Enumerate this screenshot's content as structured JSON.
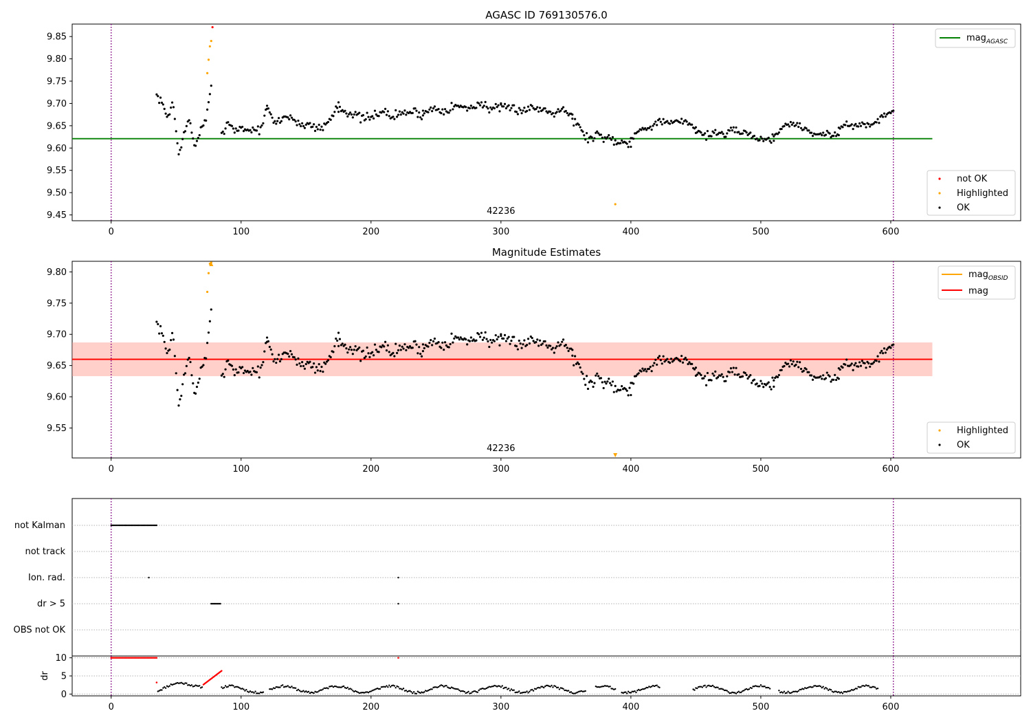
{
  "chart_data": [
    {
      "type": "scatter",
      "title": "AGASC ID 769130576.0",
      "xlim": [
        -30,
        700
      ],
      "ylim": [
        9.437,
        9.878
      ],
      "xticks": [
        0,
        100,
        200,
        300,
        400,
        500,
        600
      ],
      "yticks": [
        9.45,
        9.5,
        9.55,
        9.6,
        9.65,
        9.7,
        9.75,
        9.8,
        9.85
      ],
      "obsid_boundaries": [
        0,
        602
      ],
      "obsid_label": "42236",
      "obsid_label_x": 300,
      "reference_line": {
        "name": "mag",
        "subscript": "AGASC",
        "value": 9.621,
        "x_range": [
          -30,
          632
        ],
        "color": "#008000"
      },
      "legend_lines": [
        {
          "name": "mag",
          "subscript": "AGASC",
          "color": "#008000"
        }
      ],
      "legend_points": [
        {
          "label": "not OK",
          "color": "#ff0000"
        },
        {
          "label": "Highlighted",
          "color": "#ffa500"
        },
        {
          "label": "OK",
          "color": "#000000"
        }
      ],
      "highlighted_points": {
        "x": [
          74,
          75,
          76,
          77,
          388
        ],
        "y": [
          9.768,
          9.798,
          9.828,
          9.84,
          9.474
        ]
      },
      "not_ok_points": {
        "x": [
          78
        ],
        "y": [
          9.871
        ]
      },
      "segments": [
        {
          "x0": 35,
          "x1": 77,
          "anchors": [
            9.718,
            9.7,
            9.668,
            9.705,
            9.585,
            9.63,
            9.665,
            9.6,
            9.64,
            9.66,
            9.735
          ],
          "amp": 0.008
        },
        {
          "x0": 85,
          "x1": 120,
          "anchors": [
            9.63,
            9.66,
            9.64,
            9.645,
            9.64,
            9.642,
            9.64,
            9.69
          ],
          "amp": 0.008
        },
        {
          "x0": 120,
          "x1": 175,
          "anchors": [
            9.69,
            9.655,
            9.668,
            9.672,
            9.65,
            9.655,
            9.648,
            9.645,
            9.665,
            9.7
          ],
          "amp": 0.01
        },
        {
          "x0": 175,
          "x1": 240,
          "anchors": [
            9.69,
            9.68,
            9.668,
            9.665,
            9.685,
            9.67,
            9.678,
            9.682,
            9.675
          ],
          "amp": 0.011
        },
        {
          "x0": 240,
          "x1": 300,
          "anchors": [
            9.678,
            9.69,
            9.685,
            9.695,
            9.688,
            9.7,
            9.69,
            9.69
          ],
          "amp": 0.01
        },
        {
          "x0": 300,
          "x1": 355,
          "anchors": [
            9.688,
            9.69,
            9.685,
            9.69,
            9.688,
            9.68,
            9.69,
            9.67
          ],
          "amp": 0.01
        },
        {
          "x0": 355,
          "x1": 400,
          "anchors": [
            9.668,
            9.64,
            9.62,
            9.63,
            9.625,
            9.618,
            9.612,
            9.615
          ],
          "amp": 0.012
        },
        {
          "x0": 400,
          "x1": 450,
          "anchors": [
            9.622,
            9.64,
            9.648,
            9.66,
            9.655,
            9.658,
            9.66,
            9.645
          ],
          "amp": 0.008
        },
        {
          "x0": 450,
          "x1": 510,
          "anchors": [
            9.64,
            9.628,
            9.635,
            9.63,
            9.64,
            9.635,
            9.625,
            9.618,
            9.622
          ],
          "amp": 0.008
        },
        {
          "x0": 510,
          "x1": 560,
          "anchors": [
            9.625,
            9.65,
            9.655,
            9.648,
            9.635,
            9.63,
            9.632,
            9.628
          ],
          "amp": 0.008
        },
        {
          "x0": 560,
          "x1": 602,
          "anchors": [
            9.64,
            9.66,
            9.645,
            9.655,
            9.65,
            9.66,
            9.675,
            9.69
          ],
          "amp": 0.009
        }
      ],
      "noise_seed": 7
    },
    {
      "type": "scatter",
      "title": "Magnitude Estimates",
      "xlim": [
        -30,
        700
      ],
      "ylim": [
        9.502,
        9.817
      ],
      "xticks": [
        0,
        100,
        200,
        300,
        400,
        500,
        600
      ],
      "yticks": [
        9.55,
        9.6,
        9.65,
        9.7,
        9.75,
        9.8
      ],
      "obsid_boundaries": [
        0,
        602
      ],
      "obsid_label": "42236",
      "obsid_label_x": 300,
      "band_outer": {
        "lo": 9.633,
        "hi": 9.687,
        "x_range": [
          -30,
          632
        ],
        "color": "#ff99aa"
      },
      "band_inner": {
        "lo": 9.633,
        "hi": 9.687,
        "x_range": [
          -30,
          632
        ],
        "color": "#ffa07a"
      },
      "lines": [
        {
          "name": "mag",
          "subscript": "OBSID",
          "value": 9.66,
          "x_range": [
            -30,
            632
          ],
          "color": "#ffa500"
        },
        {
          "name": "mag",
          "subscript": "",
          "value": 9.66,
          "x_range": [
            -30,
            632
          ],
          "color": "#ff0000"
        }
      ],
      "legend_lines": [
        {
          "name": "mag",
          "subscript": "OBSID",
          "color": "#ffa500"
        },
        {
          "name": "mag",
          "subscript": "",
          "color": "#ff0000"
        }
      ],
      "legend_points": [
        {
          "label": "Highlighted",
          "color": "#ffa500"
        },
        {
          "label": "OK",
          "color": "#000000"
        }
      ],
      "highlighted_points": {
        "x": [
          74,
          75,
          76,
          77
        ],
        "y": [
          9.768,
          9.798,
          9.813,
          9.815
        ]
      },
      "out_of_range_markers": [
        {
          "x": 77,
          "direction": "up",
          "color": "#ffa500"
        },
        {
          "x": 388,
          "direction": "down",
          "color": "#ffa500"
        }
      ],
      "reuse_points_from": 0,
      "segments": [],
      "noise_seed": 7
    },
    {
      "type": "scatter",
      "title": "",
      "xlim": [
        -30,
        700
      ],
      "categories": [
        "not Kalman",
        "not track",
        "Ion. rad.",
        "dr > 5",
        "OBS not OK"
      ],
      "flags": [
        {
          "category": "not Kalman",
          "x_ranges": [
            [
              0,
              35
            ]
          ],
          "points": []
        },
        {
          "category": "not track",
          "x_ranges": [],
          "points": []
        },
        {
          "category": "Ion. rad.",
          "x_ranges": [],
          "points": [
            29,
            221
          ]
        },
        {
          "category": "dr > 5",
          "x_ranges": [
            [
              77,
              84
            ]
          ],
          "points": [
            221
          ]
        },
        {
          "category": "OBS not OK",
          "x_ranges": [],
          "points": []
        }
      ],
      "obsid_boundaries": [
        0,
        602
      ]
    },
    {
      "type": "scatter",
      "title": "",
      "ylabel": "dr",
      "xlim": [
        -30,
        700
      ],
      "ylim": [
        -0.5,
        10.5
      ],
      "xticks": [
        0,
        100,
        200,
        300,
        400,
        500,
        600
      ],
      "yticks": [
        0,
        5,
        10
      ],
      "obsid_boundaries": [
        0,
        602
      ],
      "red_points": {
        "x_ranges": [
          [
            0,
            35
          ]
        ],
        "value": 10
      },
      "red_single": [
        {
          "x": 221,
          "y": 10
        },
        {
          "x": 35,
          "y": 3.2
        }
      ],
      "red_ramp": {
        "x0": 71,
        "x1": 85,
        "y0": 2.6,
        "y1": 6.4
      },
      "dr_segments": [
        {
          "x0": 35,
          "x1": 70,
          "y0": 2.5,
          "y1": 2.5
        },
        {
          "x0": 85,
          "x1": 590,
          "y0": 1.3,
          "y1": 1.3
        }
      ],
      "dr_gaps": [
        [
          118,
          121
        ],
        [
          366,
          372
        ],
        [
          389,
          392
        ],
        [
          423,
          447
        ],
        [
          508,
          513
        ]
      ]
    }
  ]
}
